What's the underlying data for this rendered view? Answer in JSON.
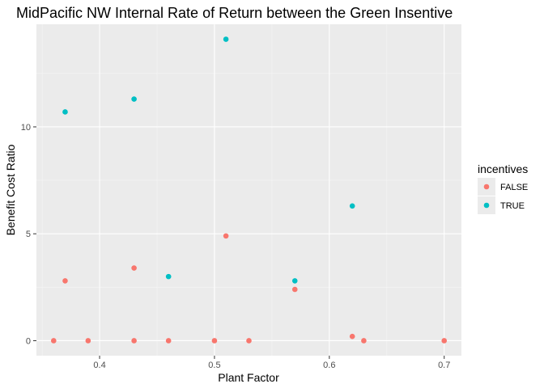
{
  "chart_data": {
    "type": "scatter",
    "title": "MidPacific NW Internal Rate of Return between the Green Insentive",
    "xlabel": "Plant Factor",
    "ylabel": "Benefit Cost Ratio",
    "xlim": [
      0.345,
      0.715
    ],
    "ylim": [
      -0.7,
      14.8
    ],
    "x_ticks": [
      0.4,
      0.5,
      0.6,
      0.7
    ],
    "x_tick_labels": [
      "0.4",
      "0.5",
      "0.6",
      "0.7"
    ],
    "y_ticks": [
      0,
      5,
      10
    ],
    "y_tick_labels": [
      "0",
      "5",
      "10"
    ],
    "grid": true,
    "legend": {
      "title": "incentives",
      "position": "right"
    },
    "series": [
      {
        "name": "FALSE",
        "color": "#F8766D",
        "points": [
          {
            "x": 0.36,
            "y": 0.0
          },
          {
            "x": 0.37,
            "y": 2.8
          },
          {
            "x": 0.39,
            "y": 0.0
          },
          {
            "x": 0.43,
            "y": 0.0
          },
          {
            "x": 0.43,
            "y": 3.4
          },
          {
            "x": 0.46,
            "y": 0.0
          },
          {
            "x": 0.5,
            "y": 0.0
          },
          {
            "x": 0.51,
            "y": 4.9
          },
          {
            "x": 0.53,
            "y": 0.0
          },
          {
            "x": 0.57,
            "y": 2.4
          },
          {
            "x": 0.62,
            "y": 0.2
          },
          {
            "x": 0.63,
            "y": 0.0
          },
          {
            "x": 0.7,
            "y": 0.0
          }
        ]
      },
      {
        "name": "TRUE",
        "color": "#00BFC4",
        "points": [
          {
            "x": 0.37,
            "y": 10.7
          },
          {
            "x": 0.43,
            "y": 11.3
          },
          {
            "x": 0.46,
            "y": 3.0
          },
          {
            "x": 0.51,
            "y": 14.1
          },
          {
            "x": 0.57,
            "y": 2.8
          },
          {
            "x": 0.62,
            "y": 6.3
          }
        ]
      }
    ]
  }
}
